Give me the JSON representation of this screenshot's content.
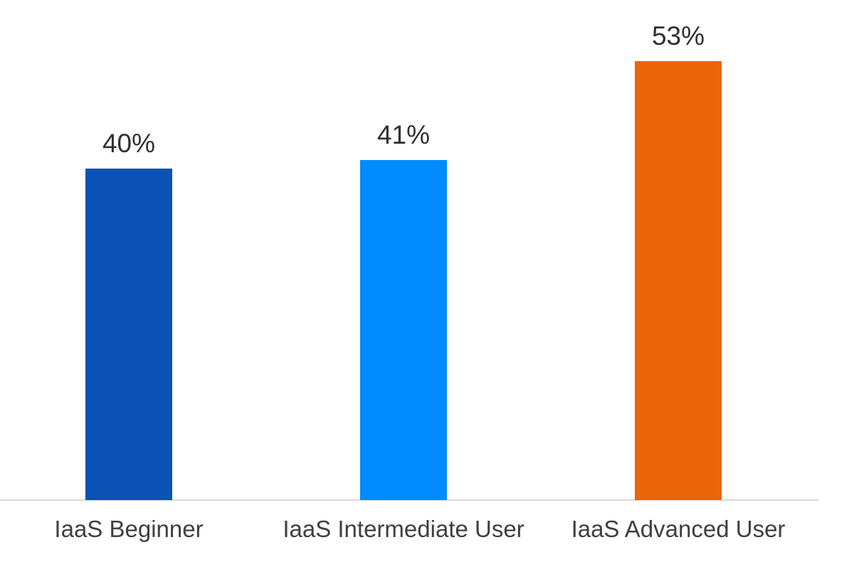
{
  "chart_data": {
    "type": "bar",
    "categories": [
      "IaaS Beginner",
      "IaaS Intermediate User",
      "IaaS Advanced User"
    ],
    "values": [
      40,
      41,
      53
    ],
    "data_labels": [
      "40%",
      "41%",
      "53%"
    ],
    "bar_colors": [
      "#0a52b5",
      "#008cff",
      "#ec6408"
    ],
    "title": "",
    "xlabel": "",
    "ylabel": "",
    "ylim": [
      0,
      60
    ],
    "grid": false,
    "legend": false,
    "unit": "%",
    "label_color": "#303030",
    "category_label_color": "#3f3f3f",
    "axis_line_color": "#d9d9d9",
    "background_color": "#ffffff"
  }
}
